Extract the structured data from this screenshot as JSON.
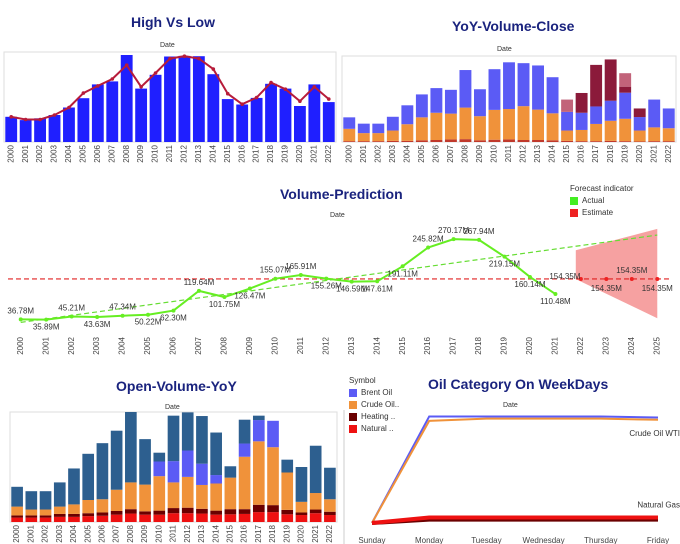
{
  "chart_data": [
    {
      "id": "high-low",
      "type": "bar",
      "title": "High Vs Low",
      "xlabel": "Date",
      "categories": [
        "2000",
        "2001",
        "2002",
        "2003",
        "2004",
        "2005",
        "2006",
        "2007",
        "2008",
        "2009",
        "2010",
        "2011",
        "2012",
        "2013",
        "2014",
        "2015",
        "2016",
        "2017",
        "2018",
        "2019",
        "2020",
        "2021",
        "2022"
      ],
      "ylim": [
        0,
        30
      ],
      "series": [
        {
          "kind": "bar",
          "color": "#1f1fff",
          "values": [
            8.4,
            7.3,
            7.9,
            9.0,
            11.5,
            14.6,
            19.2,
            20.2,
            29.0,
            17.8,
            22.4,
            28.5,
            28.7,
            28.6,
            22.6,
            14.3,
            12.5,
            14.7,
            19.4,
            17.8,
            12.0,
            19.2,
            13.3
          ]
        },
        {
          "kind": "line",
          "color": "#b71c3a",
          "values": [
            8.4,
            7.5,
            7.5,
            9.0,
            11.5,
            16.3,
            18.7,
            21.0,
            25.6,
            18.4,
            23.0,
            27.8,
            28.6,
            27.8,
            24.3,
            16.1,
            12.6,
            14.8,
            19.8,
            17.6,
            13.6,
            18.4,
            14.3
          ]
        }
      ]
    },
    {
      "id": "yoy-volume-close",
      "type": "bar",
      "title": "YoY-Volume-Close",
      "xlabel": "Date",
      "categories": [
        "2000",
        "2001",
        "2002",
        "2003",
        "2004",
        "2005",
        "2006",
        "2007",
        "2008",
        "2009",
        "2010",
        "2011",
        "2012",
        "2013",
        "2014",
        "2015",
        "2016",
        "2017",
        "2018",
        "2019",
        "2020",
        "2021",
        "2022"
      ],
      "ylim": [
        0,
        30
      ],
      "stacked": true,
      "series": [
        {
          "color": "#c0392b",
          "values": [
            0.3,
            0.3,
            0.3,
            0.4,
            0.4,
            0.6,
            0.7,
            0.9,
            1.0,
            0.6,
            0.8,
            0.9,
            0.7,
            0.7,
            0.6,
            0.4,
            0.3,
            0.3,
            0.4,
            0.3,
            0.2,
            0.3,
            0.3
          ]
        },
        {
          "color": "#f0923a",
          "values": [
            4.3,
            2.8,
            2.8,
            3.6,
            5.8,
            8.0,
            9.5,
            9.0,
            11.0,
            8.4,
            10.4,
            10.6,
            11.8,
            10.6,
            9.4,
            3.6,
            3.9,
            6.0,
            7.0,
            7.8,
            3.8,
            4.8,
            4.5
          ]
        },
        {
          "color": "#5b5bf5",
          "values": [
            4.0,
            3.3,
            3.3,
            4.8,
            6.6,
            8.0,
            8.6,
            8.3,
            13.1,
            9.4,
            14.2,
            16.3,
            15.0,
            15.4,
            12.6,
            6.5,
            6.0,
            6.1,
            7.0,
            9.1,
            4.7,
            9.7,
            6.9
          ]
        },
        {
          "color": "#8b1a3a",
          "values": [
            0,
            0,
            0,
            0,
            0,
            0,
            0,
            0,
            0,
            0,
            0,
            0,
            0,
            0,
            0,
            0,
            6.9,
            14.5,
            14.4,
            2.1,
            3.0,
            0,
            0
          ]
        },
        {
          "color": "#c2637a",
          "values": [
            0,
            0,
            0,
            0,
            0,
            0,
            0,
            0,
            0,
            0,
            0,
            0,
            0,
            0,
            0,
            4.3,
            0,
            0,
            0,
            4.7,
            0,
            0,
            0
          ]
        }
      ]
    },
    {
      "id": "volume-prediction",
      "type": "line",
      "title": "Volume-Prediction",
      "xlabel": "Date",
      "categories": [
        "2000",
        "2001",
        "2002",
        "2003",
        "2004",
        "2005",
        "2006",
        "2007",
        "2008",
        "2009",
        "2010",
        "2011",
        "2012",
        "2013",
        "2014",
        "2015",
        "2016",
        "2017",
        "2018",
        "2019",
        "2020",
        "2021",
        "2022",
        "2023",
        "2024",
        "2025"
      ],
      "ylim": [
        0,
        320
      ],
      "legend_title": "Forecast indicator",
      "legend": [
        {
          "name": "Actual",
          "color": "#44ee22"
        },
        {
          "name": "Estimate",
          "color": "#ee2222"
        }
      ],
      "actual_values": [
        36.78,
        35.89,
        45.21,
        43.63,
        47.34,
        50.22,
        62.3,
        119.64,
        101.75,
        126.47,
        155.07,
        165.91,
        155.26,
        146.59,
        147.61,
        191.11,
        245.82,
        270.17,
        267.94,
        219.15,
        160.14,
        110.48
      ],
      "actual_labels": [
        "36.78M",
        "35.89M",
        "45.21M",
        "43.63M",
        "47.34M",
        "50.22M",
        "62.30M",
        "119.64M",
        "101.75M",
        "126.47M",
        "155.07M",
        "165.91M",
        "155.26M",
        "146.59M",
        "147.61M",
        "191.11M",
        "245.82M",
        "270.17M",
        "267.94M",
        "219.15M",
        "160.14M",
        "110.48M"
      ],
      "estimate_values": [
        154.35,
        154.35,
        154.35,
        154.35
      ],
      "estimate_labels": [
        "154.35M",
        "154.35M",
        "154.35M",
        "154.35M"
      ],
      "average_line": 154.35,
      "trend_line": [
        28,
        282
      ],
      "band_upper": [
        238,
        300
      ],
      "band_lower": [
        154,
        40
      ]
    },
    {
      "id": "open-volume-yoy",
      "type": "bar",
      "title": "Open-Volume-YoY",
      "xlabel": "Date",
      "categories": [
        "2000",
        "2001",
        "2002",
        "2003",
        "2004",
        "2005",
        "2006",
        "2007",
        "2008",
        "2009",
        "2010",
        "2011",
        "2012",
        "2013",
        "2014",
        "2015",
        "2016",
        "2017",
        "2018",
        "2019",
        "2020",
        "2021",
        "2022"
      ],
      "ylim": [
        0,
        30
      ],
      "stacked": true,
      "series": [
        {
          "color": "#ee1111",
          "values": [
            1.2,
            1.2,
            1.2,
            1.4,
            1.4,
            1.6,
            1.7,
            2.0,
            2.3,
            2.0,
            2.0,
            2.4,
            2.4,
            2.3,
            2.0,
            2.1,
            2.2,
            2.7,
            2.7,
            2.1,
            1.9,
            2.4,
            1.9
          ]
        },
        {
          "color": "#6b0000",
          "values": [
            0.6,
            0.6,
            0.6,
            0.8,
            0.8,
            0.8,
            0.9,
            1.0,
            1.2,
            0.9,
            1.1,
            1.4,
            1.5,
            1.3,
            1.1,
            1.4,
            1.3,
            2.0,
            1.9,
            1.2,
            0.7,
            1.0,
            0.9
          ]
        },
        {
          "color": "#f0923a",
          "values": [
            2.4,
            1.6,
            1.6,
            2.0,
            2.6,
            3.6,
            3.6,
            5.8,
            7.3,
            7.3,
            9.4,
            7.0,
            8.4,
            6.5,
            7.4,
            8.6,
            14.3,
            17.3,
            15.8,
            10.2,
            2.9,
            4.5,
            3.4
          ]
        },
        {
          "color": "#5b5bf5",
          "values": [
            0,
            0,
            0,
            0,
            0,
            0,
            0,
            0,
            0,
            0,
            4.0,
            5.8,
            7.2,
            5.8,
            2.3,
            0,
            3.6,
            5.8,
            7.2,
            0,
            0,
            0,
            0
          ]
        },
        {
          "color": "#2d5f8f",
          "values": [
            5.4,
            5.0,
            5.0,
            6.6,
            9.8,
            12.6,
            15.3,
            16.1,
            19.2,
            12.4,
            2.4,
            12.4,
            10.4,
            13.0,
            11.6,
            3.1,
            6.5,
            1.2,
            0,
            3.5,
            9.5,
            12.9,
            8.6
          ]
        }
      ],
      "legend_title": "Symbol",
      "legend": [
        {
          "name": "Brent Oil",
          "color": "#5b5bf5"
        },
        {
          "name": "Crude Oil..",
          "color": "#f0923a"
        },
        {
          "name": "Heating ..",
          "color": "#6b0000"
        },
        {
          "name": "Natural ..",
          "color": "#ee1111"
        }
      ]
    },
    {
      "id": "oil-weekdays",
      "type": "line",
      "title": "Oil Category On WeekDays",
      "xlabel": "Date",
      "categories": [
        "Sunday",
        "Monday",
        "Tuesday",
        "Wednesday",
        "Thursday",
        "Friday"
      ],
      "ylim": [
        0,
        100
      ],
      "series": [
        {
          "name": "Brent Oil",
          "color": "#5b5bf5",
          "values": [
            0,
            96,
            96,
            96,
            96,
            95
          ]
        },
        {
          "name": "Crude Oil WTI",
          "color": "#f0923a",
          "values": [
            0,
            92,
            94,
            94,
            94,
            93
          ]
        },
        {
          "name": "Heating Oil",
          "color": "#6b0000",
          "values": [
            0,
            3,
            3,
            3,
            3,
            3
          ]
        },
        {
          "name": "Natural Gas",
          "color": "#ee1111",
          "values": [
            0,
            5,
            5,
            5,
            5,
            5
          ]
        }
      ],
      "end_labels": {
        "Crude Oil WTI": "Crude Oil WTI",
        "Natural Gas": "Natural Gas"
      }
    }
  ]
}
